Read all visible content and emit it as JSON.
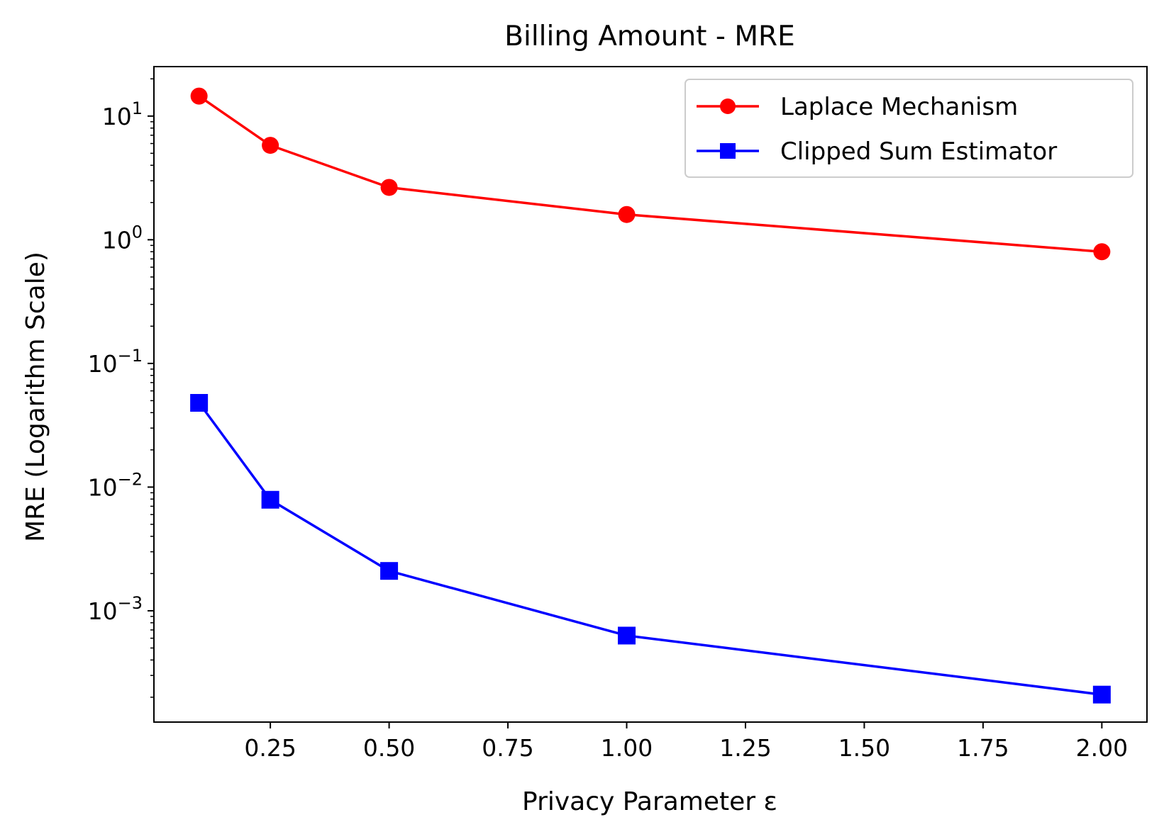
{
  "chart_data": {
    "type": "line",
    "title": "Billing Amount - MRE",
    "xlabel": "Privacy Parameter ε",
    "ylabel": "MRE (Logarithm Scale)",
    "yscale": "log",
    "xlim": [
      0.005,
      2.095
    ],
    "ylim_log10": [
      -3.9,
      1.4
    ],
    "x": [
      0.1,
      0.25,
      0.5,
      1.0,
      2.0
    ],
    "series": [
      {
        "name": "Laplace Mechanism",
        "color": "#ff0000",
        "marker": "circle",
        "values": [
          14.5,
          5.8,
          2.65,
          1.6,
          0.8
        ]
      },
      {
        "name": "Clipped Sum Estimator",
        "color": "#0000ff",
        "marker": "square",
        "values": [
          0.048,
          0.0079,
          0.0021,
          0.00063,
          0.00021
        ]
      }
    ],
    "x_ticks": [
      {
        "value": 0.25,
        "label": "0.25"
      },
      {
        "value": 0.5,
        "label": "0.50"
      },
      {
        "value": 0.75,
        "label": "0.75"
      },
      {
        "value": 1.0,
        "label": "1.00"
      },
      {
        "value": 1.25,
        "label": "1.25"
      },
      {
        "value": 1.5,
        "label": "1.50"
      },
      {
        "value": 1.75,
        "label": "1.75"
      },
      {
        "value": 2.0,
        "label": "2.00"
      }
    ],
    "y_ticks": [
      {
        "exp": 1,
        "base": "10",
        "sup": "1"
      },
      {
        "exp": 0,
        "base": "10",
        "sup": "0"
      },
      {
        "exp": -1,
        "base": "10",
        "sup": "−1"
      },
      {
        "exp": -2,
        "base": "10",
        "sup": "−2"
      },
      {
        "exp": -3,
        "base": "10",
        "sup": "−3"
      }
    ],
    "legend": {
      "location": "upper right",
      "entries": [
        "Laplace Mechanism",
        "Clipped Sum Estimator"
      ]
    },
    "grid": false
  }
}
